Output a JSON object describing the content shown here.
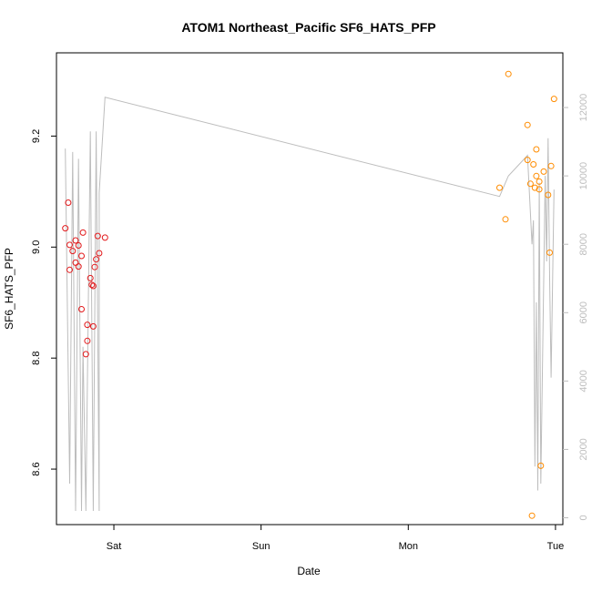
{
  "chart_data": {
    "type": "scatter",
    "title": "ATOM1 Northeast_Pacific SF6_HATS_PFP",
    "xlabel": "Date",
    "ylabel": "SF6_HATS_PFP",
    "x_unit": "days from Friday 00:00",
    "xlim": [
      0.61,
      4.05
    ],
    "x_ticks": [
      {
        "x": 1.0,
        "label": "Sat"
      },
      {
        "x": 2.0,
        "label": "Sun"
      },
      {
        "x": 3.0,
        "label": "Mon"
      },
      {
        "x": 4.0,
        "label": "Tue"
      }
    ],
    "ylim": [
      8.5,
      9.35
    ],
    "y_ticks": [
      8.6,
      8.8,
      9.0,
      9.2
    ],
    "y2_label": "",
    "y2lim": [
      -200,
      13600
    ],
    "y2_ticks": [
      0,
      2000,
      4000,
      6000,
      8000,
      10000,
      12000
    ],
    "colors": {
      "series1": "#e31a1c",
      "series2": "#ff8c00",
      "altitude": "#bdbdbd",
      "axis": "#000000"
    },
    "series": [
      {
        "color": "#e31a1c",
        "points": [
          [
            0.67,
            9.034
          ],
          [
            0.69,
            9.08
          ],
          [
            0.7,
            9.004
          ],
          [
            0.7,
            8.959
          ],
          [
            0.72,
            8.993
          ],
          [
            0.74,
            8.972
          ],
          [
            0.74,
            9.012
          ],
          [
            0.76,
            9.003
          ],
          [
            0.76,
            8.965
          ],
          [
            0.78,
            8.984
          ],
          [
            0.78,
            8.888
          ],
          [
            0.79,
            9.026
          ],
          [
            0.81,
            8.807
          ],
          [
            0.82,
            8.831
          ],
          [
            0.82,
            8.86
          ],
          [
            0.84,
            8.944
          ],
          [
            0.85,
            8.932
          ],
          [
            0.86,
            8.857
          ],
          [
            0.86,
            8.93
          ],
          [
            0.87,
            8.964
          ],
          [
            0.88,
            8.978
          ],
          [
            0.89,
            9.02
          ],
          [
            0.9,
            8.989
          ],
          [
            0.94,
            9.017
          ]
        ]
      },
      {
        "color": "#ff8c00",
        "points": [
          [
            3.62,
            9.107
          ],
          [
            3.66,
            9.05
          ],
          [
            3.68,
            9.312
          ],
          [
            3.81,
            9.22
          ],
          [
            3.81,
            9.157
          ],
          [
            3.83,
            9.114
          ],
          [
            3.84,
            8.516
          ],
          [
            3.85,
            9.149
          ],
          [
            3.86,
            9.107
          ],
          [
            3.87,
            9.128
          ],
          [
            3.87,
            9.176
          ],
          [
            3.89,
            9.118
          ],
          [
            3.89,
            9.104
          ],
          [
            3.9,
            8.606
          ],
          [
            3.92,
            9.136
          ],
          [
            3.95,
            9.094
          ],
          [
            3.96,
            8.99
          ],
          [
            3.97,
            9.146
          ],
          [
            3.99,
            9.267
          ]
        ]
      }
    ],
    "altitude_line": [
      [
        0.67,
        10800
      ],
      [
        0.7,
        1000
      ],
      [
        0.72,
        10700
      ],
      [
        0.74,
        200
      ],
      [
        0.76,
        10500
      ],
      [
        0.78,
        200
      ],
      [
        0.79,
        5000
      ],
      [
        0.81,
        200
      ],
      [
        0.84,
        11300
      ],
      [
        0.86,
        200
      ],
      [
        0.88,
        11300
      ],
      [
        0.9,
        200
      ],
      [
        0.9,
        9500
      ],
      [
        0.94,
        12300
      ],
      [
        3.62,
        9400
      ],
      [
        3.68,
        10000
      ],
      [
        3.81,
        10600
      ],
      [
        3.84,
        8000
      ],
      [
        3.85,
        8700
      ],
      [
        3.86,
        1500
      ],
      [
        3.87,
        6300
      ],
      [
        3.88,
        800
      ],
      [
        3.89,
        9800
      ],
      [
        3.9,
        1000
      ],
      [
        3.93,
        10000
      ],
      [
        3.94,
        7500
      ],
      [
        3.95,
        11100
      ],
      [
        3.96,
        7000
      ],
      [
        3.97,
        4100
      ],
      [
        3.99,
        9600
      ]
    ]
  }
}
